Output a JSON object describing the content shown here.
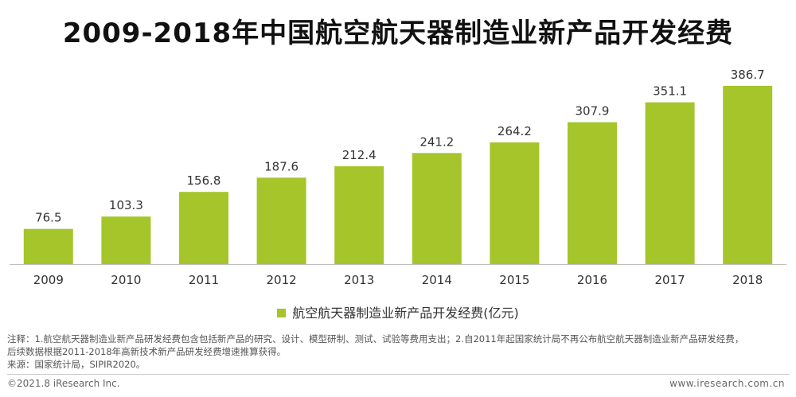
{
  "title": "2009-2018年中国航空航天器制造业新产品开发经费",
  "chart_data": {
    "type": "bar",
    "categories": [
      "2009",
      "2010",
      "2011",
      "2012",
      "2013",
      "2014",
      "2015",
      "2016",
      "2017",
      "2018"
    ],
    "series": [
      {
        "name": "航空航天器制造业新产品开发经费(亿元)",
        "values": [
          76.5,
          103.3,
          156.8,
          187.6,
          212.4,
          241.2,
          264.2,
          307.9,
          351.1,
          386.7
        ],
        "color": "#a5c52a"
      }
    ],
    "ylim": [
      0,
      386.7
    ],
    "grid": false,
    "legend_position": "bottom"
  },
  "notes": {
    "line1": "注释：1.航空航天器制造业新产品研发经费包含包括新产品的研究、设计、模型研制、测试、试验等费用支出；2.自2011年起国家统计局不再公布航空航天器制造业新产品研发经费，",
    "line2": "后续数据根据2011-2018年高新技术新产品研发经费增速推算获得。",
    "line3": "来源：国家统计局，SIPIR2020。"
  },
  "footer": {
    "copyright": "©2021.8 iResearch Inc.",
    "website": "www.iresearch.com.cn"
  }
}
